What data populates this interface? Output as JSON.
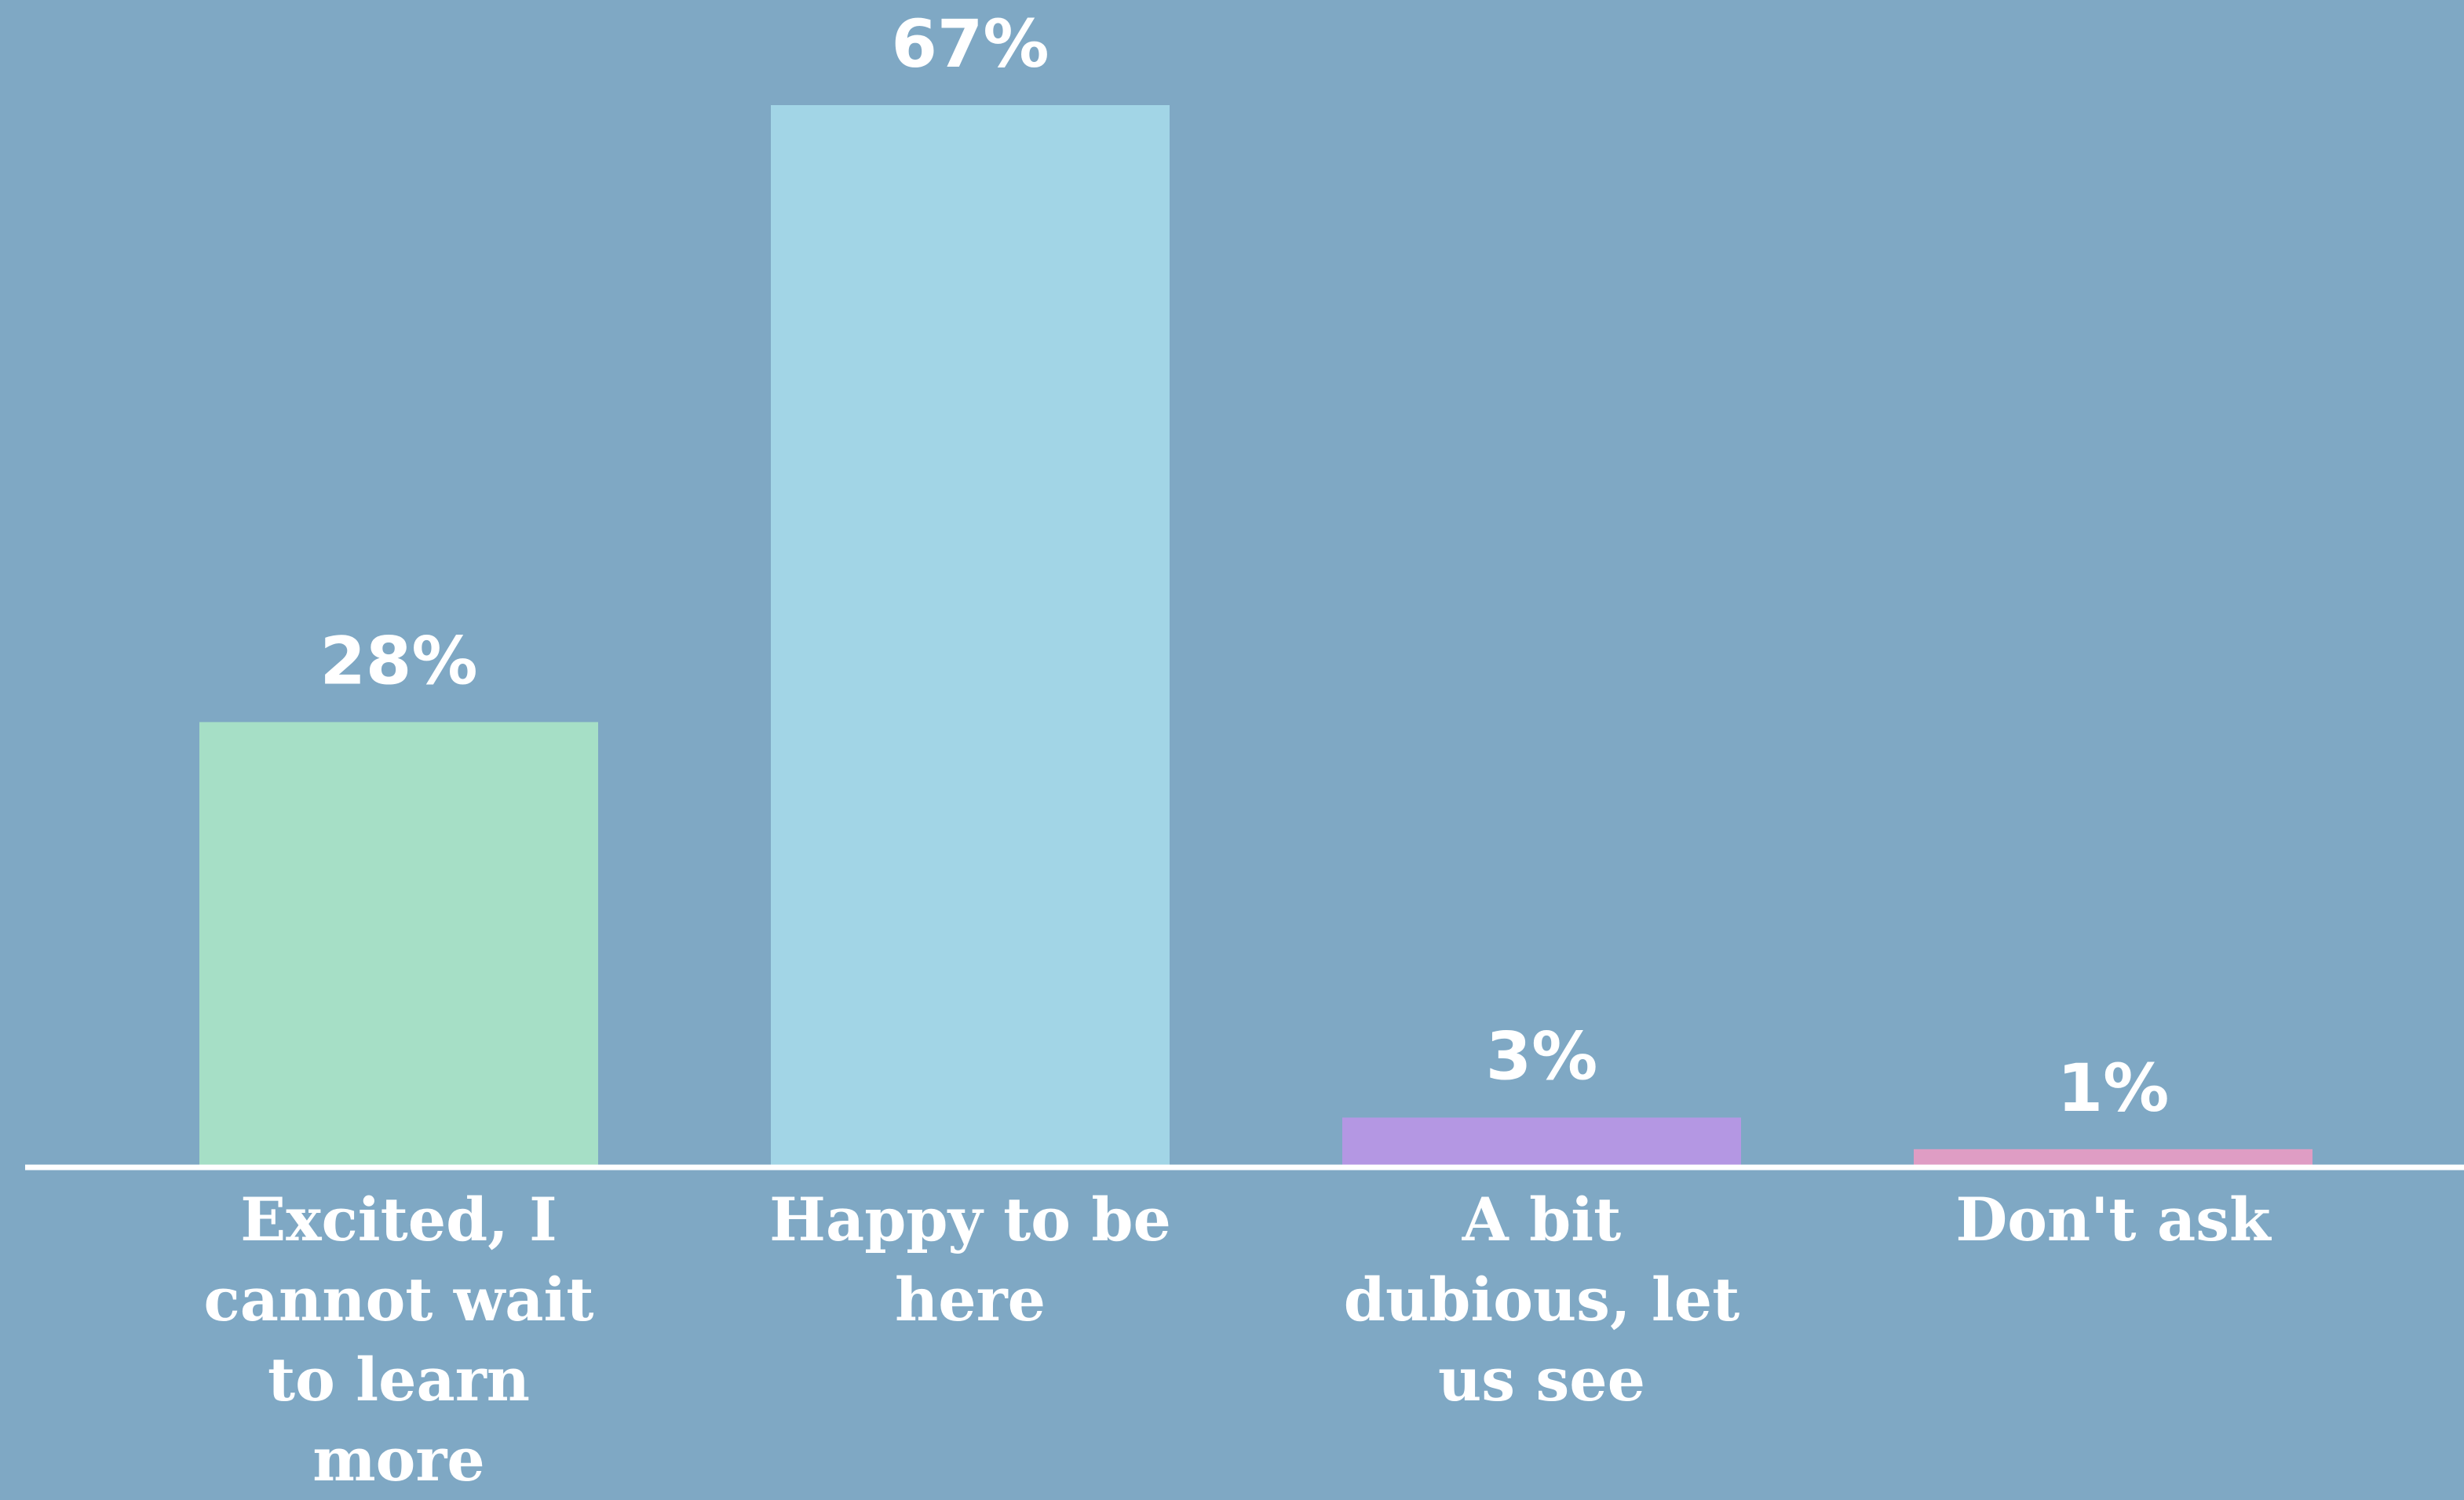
{
  "chart_data": {
    "type": "bar",
    "categories": [
      "Excited, I cannot wait to learn more",
      "Happy to be here",
      "A bit dubious, let us see",
      "Don't ask"
    ],
    "values": [
      28,
      67,
      3,
      1
    ],
    "value_labels": [
      "28%",
      "67%",
      "3%",
      "1%"
    ],
    "colors": [
      "#a6dfc6",
      "#a2d5e6",
      "#b497e3",
      "#df9dc4"
    ]
  }
}
